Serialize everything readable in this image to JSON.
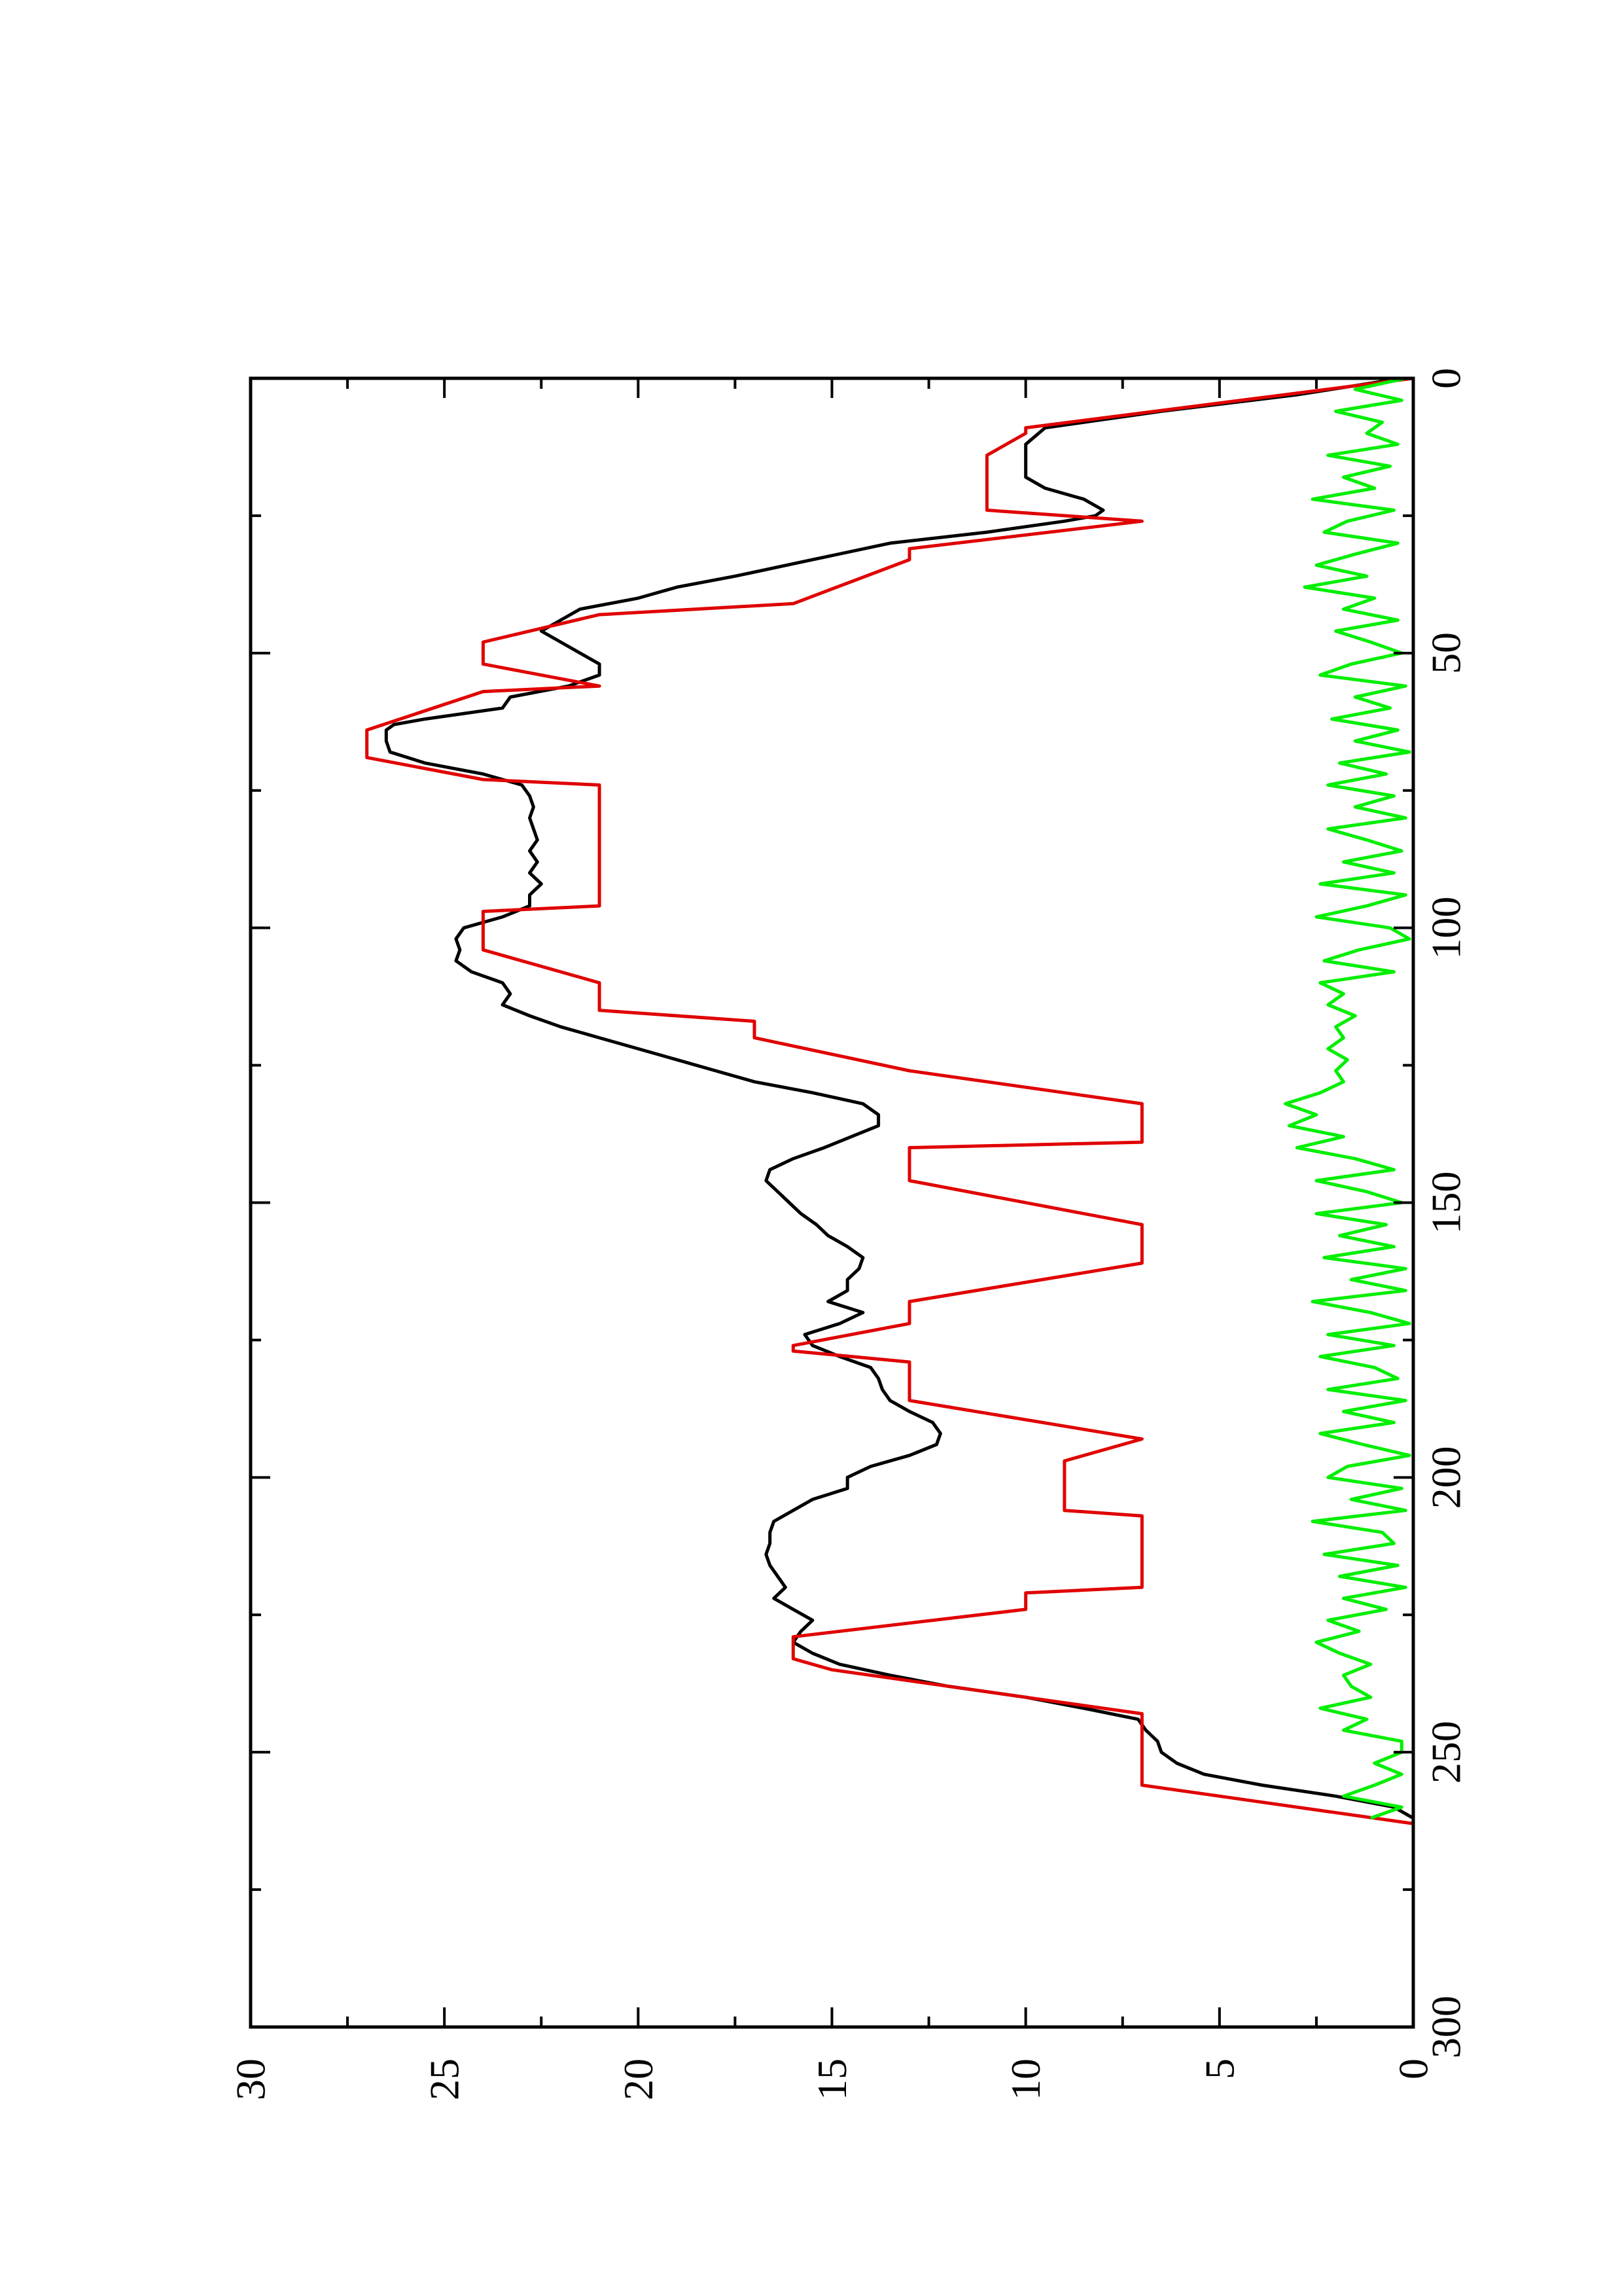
{
  "chart_data": {
    "type": "line",
    "title": "",
    "xlabel": "",
    "ylabel": "",
    "xlim": [
      0,
      300
    ],
    "ylim": [
      0,
      30
    ],
    "xticks": [
      0,
      50,
      100,
      150,
      200,
      250,
      300
    ],
    "yticks": [
      0,
      5,
      10,
      15,
      20,
      25,
      30
    ],
    "xtick_labels": [
      "0",
      "50",
      "100",
      "150",
      "200",
      "250",
      "300"
    ],
    "ytick_labels": [
      "0",
      "5",
      "10",
      "15",
      "20",
      "25",
      "30"
    ],
    "grid": false,
    "legend": "none",
    "orientation": "rotated 90° counter-clockwise",
    "series": [
      {
        "color": "#000000",
        "x": [
          0,
          3,
          6,
          9,
          12,
          15,
          18,
          20,
          22,
          24,
          25,
          26,
          28,
          30,
          33,
          36,
          38,
          40,
          42,
          44,
          46,
          48,
          50,
          52,
          54,
          56,
          58,
          60,
          62,
          63,
          64,
          66,
          68,
          70,
          72,
          74,
          76,
          78,
          80,
          82,
          84,
          86,
          88,
          90,
          92,
          94,
          96,
          98,
          100,
          102,
          104,
          106,
          108,
          110,
          112,
          114,
          116,
          118,
          120,
          122,
          124,
          126,
          128,
          130,
          132,
          134,
          136,
          138,
          140,
          142,
          144,
          146,
          148,
          150,
          152,
          154,
          156,
          158,
          160,
          162,
          164,
          166,
          168,
          170,
          172,
          174,
          176,
          178,
          180,
          182,
          184,
          186,
          188,
          190,
          192,
          194,
          196,
          198,
          200,
          202,
          204,
          206,
          208,
          210,
          212,
          214,
          216,
          218,
          220,
          222,
          224,
          226,
          228,
          230,
          232,
          234,
          236,
          238,
          240,
          242,
          244,
          246,
          248,
          250,
          252,
          254,
          256,
          258,
          260,
          262
        ],
        "y": [
          0.3,
          3,
          6.5,
          9.5,
          10,
          10,
          10,
          9.5,
          8.5,
          8,
          8.2,
          9,
          11,
          13.5,
          15.5,
          17.5,
          19,
          20,
          21.5,
          22,
          22.5,
          22,
          21.5,
          21,
          21,
          21.8,
          23.3,
          23.5,
          25.5,
          26.3,
          26.5,
          26.5,
          26.4,
          25.5,
          24,
          23,
          22.8,
          22.7,
          22.8,
          22.7,
          22.6,
          22.8,
          22.6,
          22.8,
          22.5,
          22.8,
          22.8,
          23.5,
          24.5,
          24.7,
          24.6,
          24.7,
          24.3,
          23.5,
          23.3,
          23.5,
          22.8,
          22,
          21,
          20,
          19,
          18,
          17,
          15.5,
          14.2,
          13.8,
          13.8,
          14.5,
          15.2,
          16,
          16.6,
          16.7,
          16.4,
          16.1,
          15.8,
          15.4,
          15.1,
          14.6,
          14.2,
          14.3,
          14.6,
          14.6,
          15.1,
          14.2,
          14.8,
          15.7,
          15.5,
          14.8,
          14,
          13.8,
          13.7,
          13.5,
          13,
          12.4,
          12.2,
          12.3,
          13,
          14,
          14.6,
          14.6,
          15.5,
          16,
          16.5,
          16.6,
          16.6,
          16.7,
          16.6,
          16.4,
          16.2,
          16.5,
          16,
          15.5,
          15.8,
          16,
          15.5,
          14.8,
          13.5,
          12,
          10,
          8.5,
          7.1,
          6.9,
          6.6,
          6.5,
          6.1,
          5.4,
          3.9,
          2,
          0.5,
          0
        ]
      },
      {
        "color": "#e00000",
        "x": [
          0,
          9,
          10,
          14,
          16,
          24,
          26,
          31,
          33,
          41,
          43,
          48,
          52,
          56,
          57,
          64,
          69,
          73,
          74,
          96,
          97,
          104,
          110,
          115,
          117,
          120,
          126,
          132,
          139,
          140,
          146,
          154,
          161,
          168,
          172,
          176,
          177,
          179,
          186,
          193,
          197,
          206,
          207,
          220,
          221,
          224,
          229,
          233,
          235,
          243,
          255,
          256,
          263
        ],
        "y": [
          0,
          10,
          10,
          11,
          11,
          11,
          7,
          13,
          13,
          16,
          21,
          24,
          24,
          21,
          24,
          27,
          27,
          24,
          21,
          21,
          24,
          24,
          21,
          21,
          17,
          17,
          13,
          7,
          7,
          13,
          13,
          7,
          7,
          13,
          13,
          16,
          16,
          13,
          13,
          7,
          9,
          9,
          7,
          7,
          10,
          10,
          16,
          16,
          15,
          7,
          7,
          7,
          0
        ]
      },
      {
        "color": "#00ee00",
        "x": [
          0,
          2,
          4,
          6,
          8,
          10,
          12,
          14,
          16,
          18,
          20,
          22,
          24,
          26,
          28,
          30,
          32,
          34,
          36,
          38,
          40,
          42,
          44,
          46,
          48,
          50,
          52,
          54,
          56,
          58,
          60,
          62,
          64,
          66,
          68,
          70,
          72,
          74,
          76,
          78,
          80,
          82,
          84,
          86,
          88,
          90,
          92,
          94,
          96,
          98,
          100,
          102,
          104,
          106,
          108,
          110,
          112,
          114,
          116,
          118,
          120,
          122,
          124,
          126,
          128,
          130,
          132,
          134,
          136,
          138,
          140,
          142,
          144,
          146,
          148,
          150,
          152,
          154,
          156,
          158,
          160,
          162,
          164,
          166,
          168,
          170,
          172,
          174,
          176,
          178,
          180,
          182,
          184,
          186,
          188,
          190,
          192,
          194,
          196,
          198,
          200,
          202,
          204,
          206,
          208,
          210,
          212,
          214,
          216,
          218,
          220,
          222,
          224,
          226,
          228,
          230,
          232,
          234,
          236,
          238,
          240,
          242,
          244,
          246,
          248,
          250,
          252,
          254,
          256,
          258,
          260,
          262
        ],
        "y": [
          0.2,
          1.5,
          0.3,
          2,
          0.8,
          1.2,
          0.4,
          2.2,
          0.6,
          1.8,
          1,
          2.6,
          0.5,
          1.7,
          2.3,
          0.4,
          1.5,
          2.5,
          1.2,
          2.8,
          1,
          1.8,
          0.4,
          2,
          1.1,
          0.3,
          1.6,
          2.4,
          0.2,
          1.5,
          0.6,
          2.1,
          0.4,
          1.5,
          0.1,
          1.9,
          0.7,
          2.2,
          0.5,
          1.5,
          0.2,
          2.2,
          1.2,
          0.3,
          1.8,
          0.5,
          2.4,
          0.2,
          1.2,
          2.5,
          0.6,
          0.1,
          1.4,
          2.3,
          0.5,
          2.4,
          1.8,
          2.2,
          1.5,
          2,
          1.8,
          2.2,
          1.7,
          2,
          1.8,
          2.4,
          3.3,
          2.5,
          3.2,
          1.8,
          3,
          1.5,
          0.5,
          2.5,
          1.2,
          0.3,
          2.5,
          0.7,
          1.9,
          0.5,
          2.3,
          0.2,
          1.6,
          0.2,
          2.6,
          1.1,
          0.1,
          2.2,
          0.5,
          2.4,
          1,
          0.4,
          2.2,
          0.2,
          1.8,
          0.5,
          2.4,
          1.3,
          0.1,
          1.7,
          2.2,
          0.3,
          1.6,
          0.2,
          2.6,
          0.8,
          0.5,
          2.3,
          0.4,
          1.9,
          0.2,
          1.8,
          0.7,
          2.2,
          1.4,
          2.5,
          1.9,
          1.1,
          1.8,
          1.6,
          1.1,
          2.4,
          1.2,
          1.8,
          0.3,
          0.3,
          1,
          0.3,
          1,
          1.8,
          0.3,
          1.1
        ]
      }
    ]
  }
}
